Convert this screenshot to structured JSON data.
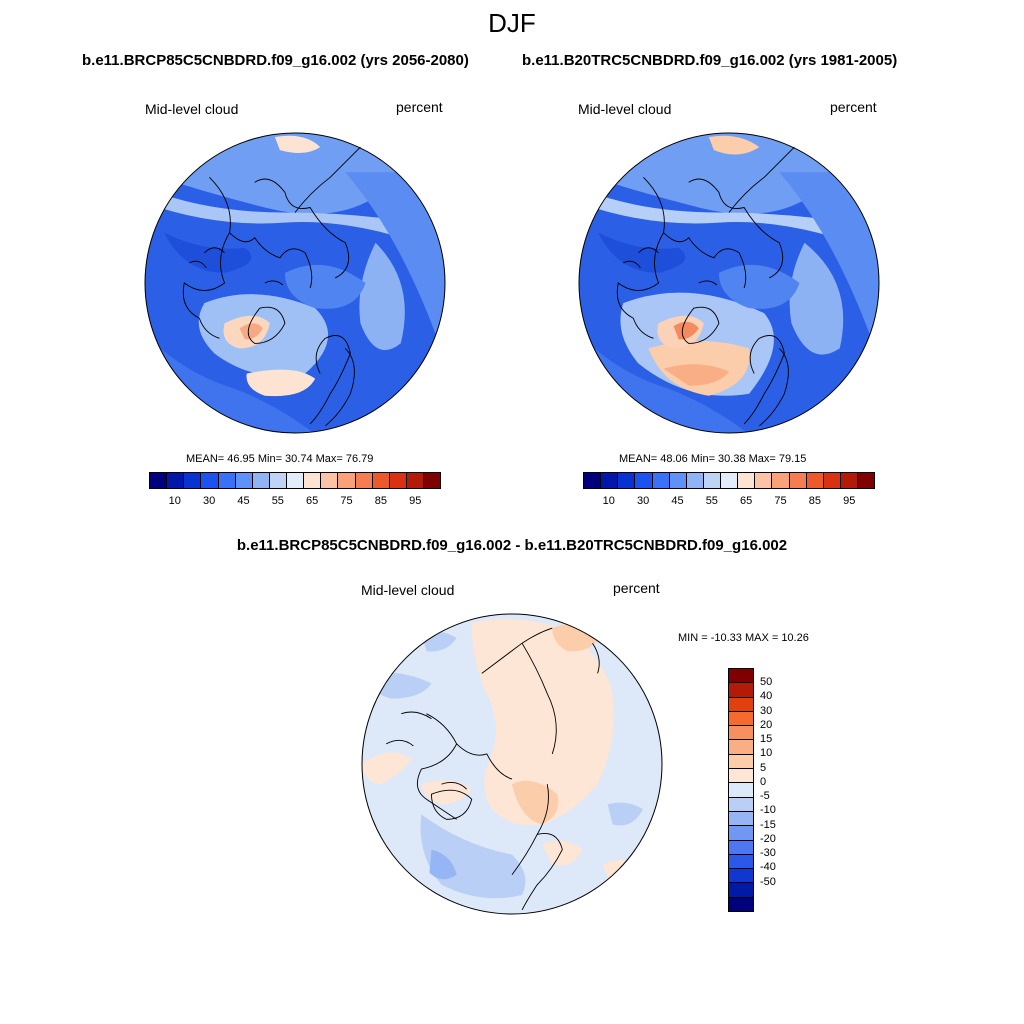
{
  "title": "DJF",
  "panel_left": {
    "run_title": "b.e11.BRCP85C5CNBDRD.f09_g16.002 (yrs 2056-2080)",
    "variable": "Mid-level cloud",
    "units": "percent",
    "stats": "MEAN=  46.95  Min=  30.74  Max=  76.79"
  },
  "panel_right": {
    "run_title": "b.e11.B20TRC5CNBDRD.f09_g16.002 (yrs 1981-2005)",
    "variable": "Mid-level cloud",
    "units": "percent",
    "stats": "MEAN=  48.06  Min=  30.38  Max=  79.15"
  },
  "panel_diff": {
    "title": "b.e11.BRCP85C5CNBDRD.f09_g16.002 - b.e11.B20TRC5CNBDRD.f09_g16.002",
    "variable": "Mid-level cloud",
    "units": "percent",
    "stats": "MIN = -10.33 MAX =  10.26"
  },
  "field_colorbar": {
    "colors": [
      "#00007f",
      "#0018a8",
      "#0734d0",
      "#1c52ee",
      "#3a72f5",
      "#5e92f6",
      "#8fb3f3",
      "#bfd3f5",
      "#e3ecfa",
      "#fde4d2",
      "#fcc4a4",
      "#f9a27a",
      "#f47e52",
      "#ec5a2c",
      "#d83212",
      "#b41a08",
      "#7f0000"
    ],
    "labels": [
      "10",
      "30",
      "45",
      "55",
      "65",
      "75",
      "85",
      "95"
    ]
  },
  "diff_colorbar": {
    "colors": [
      "#7f0000",
      "#b41a08",
      "#e2400e",
      "#f66a2e",
      "#f78f5e",
      "#f9ae85",
      "#fccdaa",
      "#fde6d5",
      "#dde8f8",
      "#b9cff5",
      "#95b5f4",
      "#7098f3",
      "#4b78f0",
      "#2a58e8",
      "#1038d0",
      "#001aa8",
      "#00007f"
    ],
    "labels": [
      "50",
      "40",
      "30",
      "20",
      "15",
      "10",
      "5",
      "0",
      "-5",
      "-10",
      "-15",
      "-20",
      "-30",
      "-40",
      "-50"
    ]
  }
}
